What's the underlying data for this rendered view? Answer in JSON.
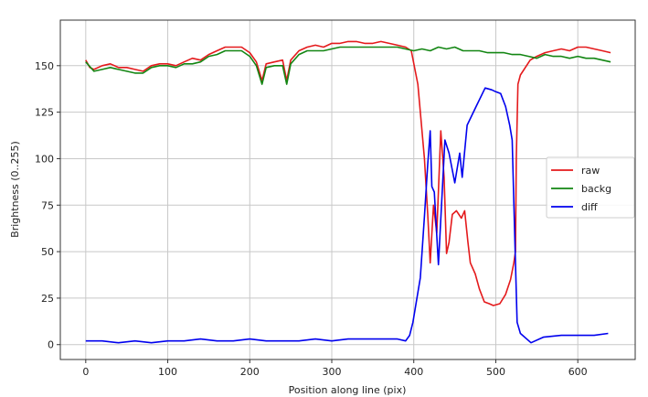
{
  "chart_data": {
    "type": "line",
    "title": "",
    "xlabel": "Position along line (pix)",
    "ylabel": "Brightness (0..255)",
    "xlim": [
      -31,
      670
    ],
    "ylim": [
      -8,
      174.5
    ],
    "xticks": [
      0,
      100,
      200,
      300,
      400,
      500,
      600
    ],
    "yticks": [
      0,
      25,
      50,
      75,
      100,
      125,
      150
    ],
    "grid": true,
    "legend_position": "center-right",
    "series": [
      {
        "name": "raw",
        "color": "#e41a1c",
        "x": [
          0,
          5,
          10,
          20,
          30,
          40,
          50,
          60,
          70,
          80,
          90,
          100,
          110,
          120,
          130,
          140,
          150,
          160,
          170,
          180,
          190,
          200,
          208,
          215,
          220,
          230,
          240,
          245,
          250,
          260,
          270,
          280,
          290,
          300,
          310,
          320,
          330,
          340,
          350,
          360,
          370,
          380,
          390,
          397,
          405,
          413,
          417,
          420,
          424,
          428,
          433,
          437,
          440,
          443,
          447,
          452,
          458,
          462,
          466,
          469,
          475,
          480,
          486,
          492,
          497,
          505,
          512,
          518,
          522,
          524,
          525,
          527,
          530,
          542,
          550,
          560,
          570,
          580,
          590,
          600,
          610,
          620,
          630,
          640
        ],
        "y": [
          153,
          149,
          148,
          150,
          151,
          149,
          149,
          148,
          147,
          150,
          151,
          151,
          150,
          152,
          154,
          153,
          156,
          158,
          160,
          160,
          160,
          157,
          152,
          142,
          151,
          152,
          153,
          142,
          153,
          158,
          160,
          161,
          160,
          162,
          162,
          163,
          163,
          162,
          162,
          163,
          162,
          161,
          160,
          158,
          140,
          100,
          70,
          44,
          75,
          60,
          115,
          90,
          49,
          55,
          70,
          72,
          68,
          72,
          55,
          44,
          38,
          30,
          23,
          22,
          21,
          22,
          27,
          35,
          44,
          50,
          100,
          140,
          145,
          153,
          155,
          157,
          158,
          159,
          158,
          160,
          160,
          159,
          158,
          157
        ]
      },
      {
        "name": "backg",
        "color": "#138613",
        "x": [
          0,
          10,
          20,
          30,
          40,
          50,
          60,
          70,
          80,
          90,
          100,
          110,
          120,
          130,
          140,
          150,
          160,
          170,
          180,
          190,
          200,
          208,
          215,
          220,
          230,
          240,
          245,
          250,
          260,
          270,
          280,
          290,
          300,
          310,
          320,
          330,
          340,
          350,
          360,
          370,
          380,
          390,
          400,
          410,
          420,
          430,
          440,
          450,
          460,
          470,
          480,
          490,
          500,
          510,
          520,
          530,
          540,
          550,
          560,
          570,
          580,
          590,
          600,
          610,
          620,
          630,
          640
        ],
        "y": [
          152,
          147,
          148,
          149,
          148,
          147,
          146,
          146,
          149,
          150,
          150,
          149,
          151,
          151,
          152,
          155,
          156,
          158,
          158,
          158,
          155,
          150,
          140,
          149,
          150,
          150,
          140,
          151,
          156,
          158,
          158,
          158,
          159,
          160,
          160,
          160,
          160,
          160,
          160,
          160,
          160,
          159,
          158,
          159,
          158,
          160,
          159,
          160,
          158,
          158,
          158,
          157,
          157,
          157,
          156,
          156,
          155,
          154,
          156,
          155,
          155,
          154,
          155,
          154,
          154,
          153,
          152
        ]
      },
      {
        "name": "diff",
        "color": "#0000ee",
        "x": [
          0,
          20,
          40,
          60,
          80,
          100,
          120,
          140,
          160,
          180,
          200,
          220,
          240,
          260,
          280,
          300,
          320,
          340,
          360,
          380,
          390,
          395,
          399,
          408,
          413,
          417,
          420,
          422,
          425,
          430,
          438,
          443,
          450,
          456,
          459,
          465,
          476,
          487,
          495,
          500,
          506,
          512,
          517,
          520,
          523,
          526,
          530,
          543,
          558,
          580,
          600,
          620,
          637
        ],
        "y": [
          2,
          2,
          1,
          2,
          1,
          2,
          2,
          3,
          2,
          2,
          3,
          2,
          2,
          2,
          3,
          2,
          3,
          3,
          3,
          3,
          2,
          5,
          12,
          36,
          69,
          97,
          115,
          85,
          82,
          43,
          110,
          103,
          87,
          103,
          90,
          118,
          128,
          138,
          137,
          136,
          135,
          128,
          118,
          110,
          60,
          12,
          6,
          1,
          4,
          5,
          5,
          5,
          6
        ]
      }
    ]
  }
}
